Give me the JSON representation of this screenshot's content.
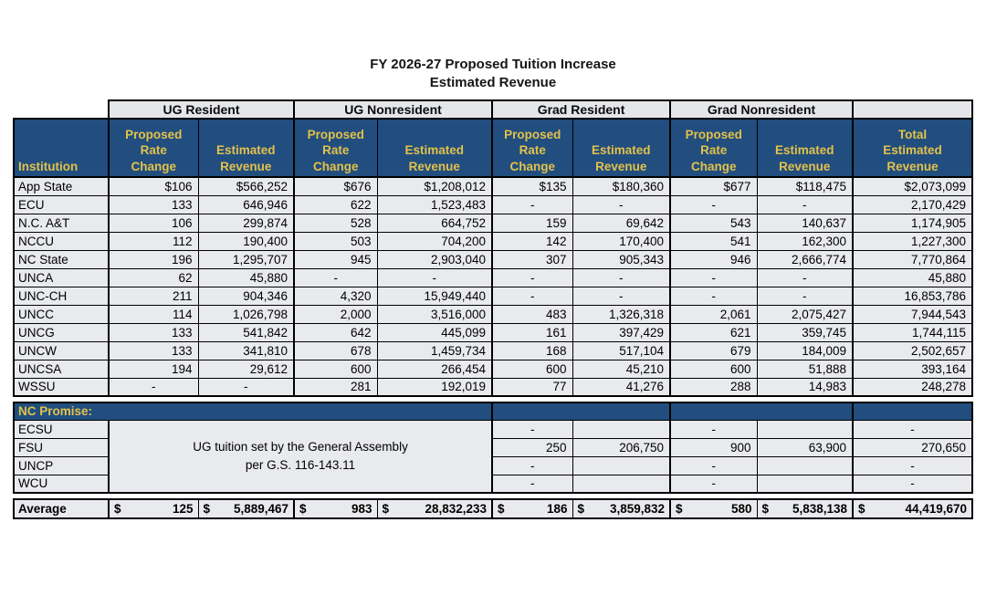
{
  "title": {
    "line1": "FY 2026-27 Proposed Tuition Increase",
    "line2": "Estimated Revenue"
  },
  "colors": {
    "header_bg": "#214E7E",
    "header_text": "#E3C14B",
    "cell_bg": "#E9EAED",
    "group_bg": "#E4E6EA",
    "border": "#000000"
  },
  "table": {
    "group_headers": [
      "UG Resident",
      "UG Nonresident",
      "Grad Resident",
      "Grad Nonresident"
    ],
    "institution_header": "Institution",
    "sub_rate": "Proposed\nRate\nChange",
    "sub_revenue": "Estimated\nRevenue",
    "total_header": "Total\nEstimated\nRevenue",
    "rows": [
      {
        "institution": "App State",
        "cells": [
          "$106",
          "$566,252",
          "$676",
          "$1,208,012",
          "$135",
          "$180,360",
          "$677",
          "$118,475",
          "$2,073,099"
        ]
      },
      {
        "institution": "ECU",
        "cells": [
          "133",
          "646,946",
          "622",
          "1,523,483",
          "-",
          "-",
          "-",
          "-",
          "2,170,429"
        ]
      },
      {
        "institution": "N.C. A&T",
        "cells": [
          "106",
          "299,874",
          "528",
          "664,752",
          "159",
          "69,642",
          "543",
          "140,637",
          "1,174,905"
        ]
      },
      {
        "institution": "NCCU",
        "cells": [
          "112",
          "190,400",
          "503",
          "704,200",
          "142",
          "170,400",
          "541",
          "162,300",
          "1,227,300"
        ]
      },
      {
        "institution": "NC State",
        "cells": [
          "196",
          "1,295,707",
          "945",
          "2,903,040",
          "307",
          "905,343",
          "946",
          "2,666,774",
          "7,770,864"
        ]
      },
      {
        "institution": "UNCA",
        "cells": [
          "62",
          "45,880",
          "-",
          "-",
          "-",
          "-",
          "-",
          "-",
          "45,880"
        ]
      },
      {
        "institution": "UNC-CH",
        "cells": [
          "211",
          "904,346",
          "4,320",
          "15,949,440",
          "-",
          "-",
          "-",
          "-",
          "16,853,786"
        ]
      },
      {
        "institution": "UNCC",
        "cells": [
          "114",
          "1,026,798",
          "2,000",
          "3,516,000",
          "483",
          "1,326,318",
          "2,061",
          "2,075,427",
          "7,944,543"
        ]
      },
      {
        "institution": "UNCG",
        "cells": [
          "133",
          "541,842",
          "642",
          "445,099",
          "161",
          "397,429",
          "621",
          "359,745",
          "1,744,115"
        ]
      },
      {
        "institution": "UNCW",
        "cells": [
          "133",
          "341,810",
          "678",
          "1,459,734",
          "168",
          "517,104",
          "679",
          "184,009",
          "2,502,657"
        ]
      },
      {
        "institution": "UNCSA",
        "cells": [
          "194",
          "29,612",
          "600",
          "266,454",
          "600",
          "45,210",
          "600",
          "51,888",
          "393,164"
        ]
      },
      {
        "institution": "WSSU",
        "cells": [
          "-",
          "-",
          "281",
          "192,019",
          "77",
          "41,276",
          "288",
          "14,983",
          "248,278"
        ]
      }
    ],
    "nc_promise": {
      "label": "NC Promise:",
      "note": "UG tuition set by the General Assembly\nper G.S. 116-143.11",
      "rows": [
        {
          "institution": "ECSU",
          "cells": [
            "-",
            "",
            "-",
            "",
            "-"
          ]
        },
        {
          "institution": "FSU",
          "cells": [
            "250",
            "206,750",
            "900",
            "63,900",
            "270,650"
          ]
        },
        {
          "institution": "UNCP",
          "cells": [
            "-",
            "",
            "-",
            "",
            "-"
          ]
        },
        {
          "institution": "WCU",
          "cells": [
            "-",
            "",
            "-",
            "",
            "-"
          ]
        }
      ]
    },
    "average": {
      "label": "Average",
      "currency": "$",
      "values": [
        "125",
        "5,889,467",
        "983",
        "28,832,233",
        "186",
        "3,859,832",
        "580",
        "5,838,138",
        "44,419,670"
      ]
    }
  }
}
